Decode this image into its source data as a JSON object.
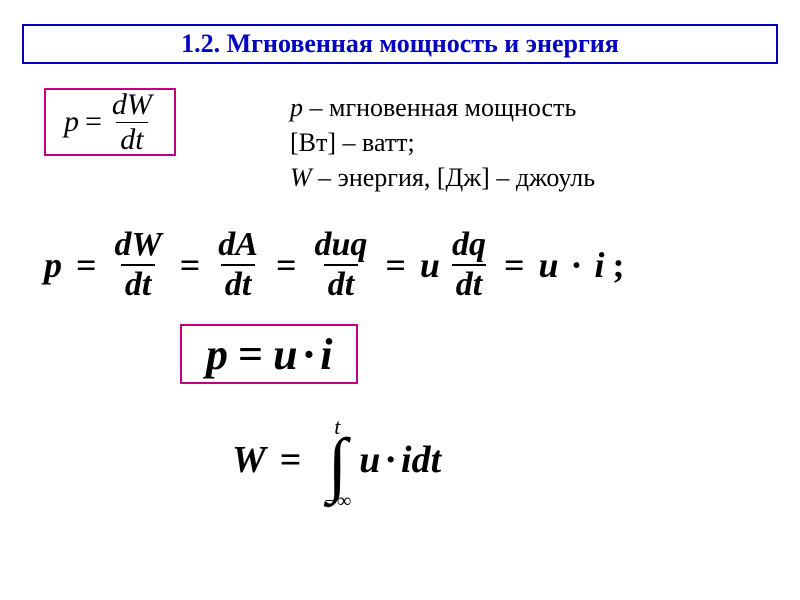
{
  "colors": {
    "title_border": "#0000c0",
    "title_text": "#0000c0",
    "formula_border": "#c00080",
    "text": "#000000"
  },
  "title": {
    "text": "1.2.  Мгновенная мощность и энергия"
  },
  "formula1": {
    "lhs": "p",
    "eq": "=",
    "num": "dW",
    "den": "dt"
  },
  "definitions": {
    "line1_sym": "p",
    "line1_sep": " –   ",
    "line1_text": "мгновенная  мощность",
    "line2": "[Вт] – ватт;",
    "line3_sym": "W",
    "line3_text": " – энергия, [Дж] – джоуль"
  },
  "long_formula": {
    "p": "p",
    "eq": "=",
    "f1_num": "dW",
    "f1_den": "dt",
    "f2_num": "dA",
    "f2_den": "dt",
    "f3_num": "duq",
    "f3_den": "dt",
    "u": "u",
    "f4_num": "dq",
    "f4_den": "dt",
    "ui": "u",
    "dot": "·",
    "i": "i",
    "semi": ";"
  },
  "formula2": {
    "text_p": "p",
    "eq": "=",
    "u": "u",
    "dot": "·",
    "i": "i"
  },
  "integral": {
    "W": "W",
    "eq": "=",
    "upper": "t",
    "symbol": "∫",
    "lower": "−∞",
    "u": "u",
    "dot": "·",
    "idt": "idt"
  }
}
